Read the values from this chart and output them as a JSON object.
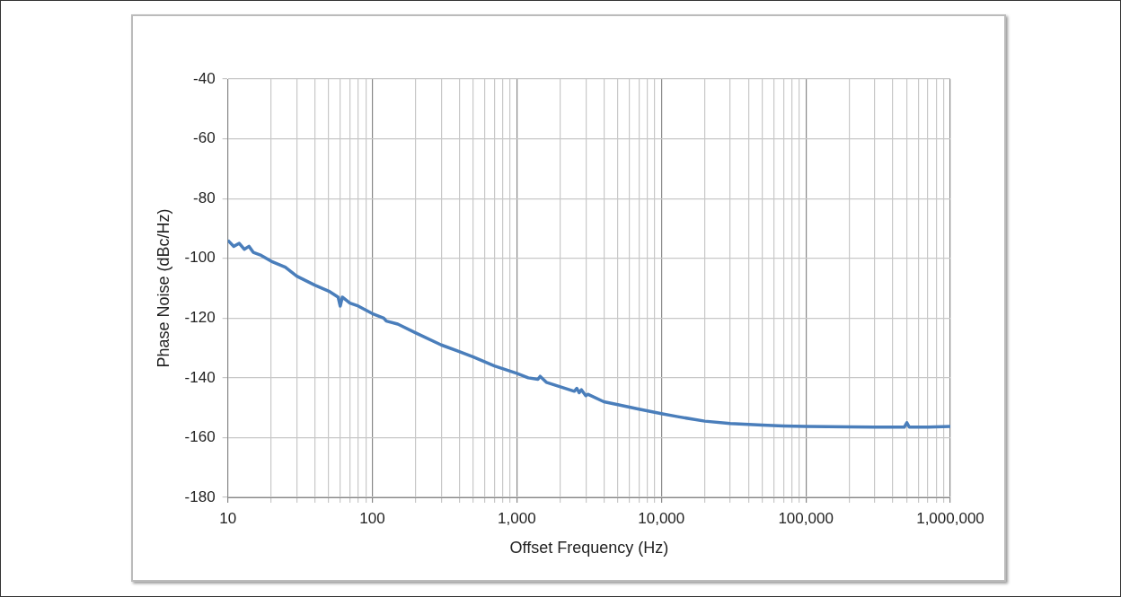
{
  "chart_data": {
    "type": "line",
    "xlabel": "Offset Frequency (Hz)",
    "ylabel": "Phase Noise (dBc/Hz)",
    "log": "x",
    "grid": true,
    "legend": false,
    "marker": "none",
    "line_style": "solid",
    "xlim": [
      10,
      1000000
    ],
    "xticks": [
      10,
      100,
      {
        "value": 1000,
        "label": "1,000"
      },
      {
        "value": 10000,
        "label": "10,000"
      },
      {
        "value": 100000,
        "label": "100,000"
      },
      {
        "value": 1000000,
        "label": "1,000,000"
      }
    ],
    "ylim": [
      -180,
      -40
    ],
    "yticks": [
      -180,
      -160,
      -140,
      -120,
      -100,
      -80,
      -60,
      -40
    ],
    "series": [
      {
        "color": "#4a7ebb",
        "x": [
          10,
          11,
          12,
          13,
          14,
          15,
          17,
          20,
          25,
          30,
          40,
          50,
          58,
          60,
          62,
          70,
          80,
          100,
          120,
          125,
          150,
          200,
          300,
          500,
          700,
          1000,
          1200,
          1400,
          1450,
          1600,
          2000,
          2500,
          2600,
          2700,
          2800,
          3000,
          3100,
          4000,
          5000,
          7000,
          10000,
          13000,
          20000,
          30000,
          50000,
          70000,
          100000,
          200000,
          300000,
          480000,
          500000,
          520000,
          700000,
          1000000
        ],
        "values": [
          -94,
          -96,
          -95,
          -97,
          -96,
          -98,
          -99,
          -101,
          -103,
          -106,
          -109,
          -111,
          -113,
          -116,
          -113,
          -115,
          -116,
          -118.5,
          -120,
          -121,
          -122,
          -125,
          -129,
          -133,
          -136,
          -138.5,
          -140,
          -140.5,
          -139.5,
          -141.5,
          -143,
          -144.5,
          -143.5,
          -145,
          -144,
          -146,
          -145.5,
          -148,
          -149,
          -150.5,
          -152,
          -153,
          -154.5,
          -155.3,
          -155.8,
          -156.1,
          -156.3,
          -156.4,
          -156.5,
          -156.5,
          -155,
          -156.5,
          -156.5,
          -156.3
        ]
      }
    ]
  }
}
